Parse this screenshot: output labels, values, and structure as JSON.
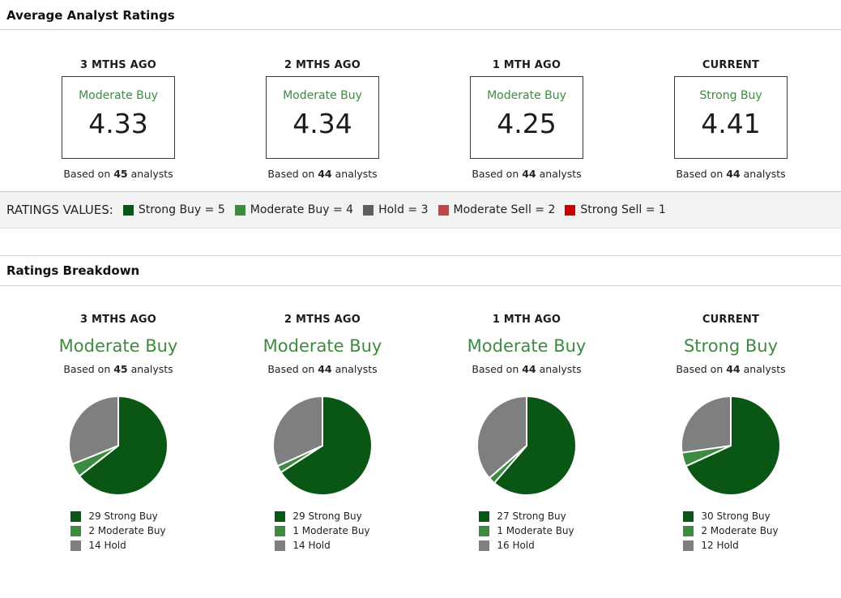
{
  "sections": {
    "average_title": "Average Analyst Ratings",
    "breakdown_title": "Ratings Breakdown"
  },
  "colors": {
    "strong_buy": "#0a5614",
    "moderate_buy": "#3d8b40",
    "hold_legend": "#5f5f5f",
    "hold_pie": "#7f7f7f",
    "moderate_sell": "#c54545",
    "strong_sell": "#cc0000",
    "rating_text_green": "#3d8b40",
    "bar_background": "#f2f2f2"
  },
  "average_ratings": {
    "columns": [
      {
        "period": "3 MTHS AGO",
        "rating": "Moderate Buy",
        "value": "4.33",
        "based_prefix": "Based on",
        "analyst_count": "45",
        "based_suffix": "analysts"
      },
      {
        "period": "2 MTHS AGO",
        "rating": "Moderate Buy",
        "value": "4.34",
        "based_prefix": "Based on",
        "analyst_count": "44",
        "based_suffix": "analysts"
      },
      {
        "period": "1 MTH AGO",
        "rating": "Moderate Buy",
        "value": "4.25",
        "based_prefix": "Based on",
        "analyst_count": "44",
        "based_suffix": "analysts"
      },
      {
        "period": "CURRENT",
        "rating": "Strong Buy",
        "value": "4.41",
        "based_prefix": "Based on",
        "analyst_count": "44",
        "based_suffix": "analysts"
      }
    ]
  },
  "ratings_values": {
    "label": "RATINGS VALUES:",
    "items": [
      {
        "label": "Strong Buy = 5"
      },
      {
        "label": "Moderate Buy = 4"
      },
      {
        "label": "Hold = 3"
      },
      {
        "label": "Moderate Sell = 2"
      },
      {
        "label": "Strong Sell = 1"
      }
    ]
  },
  "breakdown": {
    "columns": [
      {
        "period": "3 MTHS AGO",
        "rating": "Moderate Buy",
        "based_prefix": "Based on",
        "analyst_count": "45",
        "based_suffix": "analysts",
        "legend": [
          "29 Strong Buy",
          "2 Moderate Buy",
          "14 Hold"
        ]
      },
      {
        "period": "2 MTHS AGO",
        "rating": "Moderate Buy",
        "based_prefix": "Based on",
        "analyst_count": "44",
        "based_suffix": "analysts",
        "legend": [
          "29 Strong Buy",
          "1 Moderate Buy",
          "14 Hold"
        ]
      },
      {
        "period": "1 MTH AGO",
        "rating": "Moderate Buy",
        "based_prefix": "Based on",
        "analyst_count": "44",
        "based_suffix": "analysts",
        "legend": [
          "27 Strong Buy",
          "1 Moderate Buy",
          "16 Hold"
        ]
      },
      {
        "period": "CURRENT",
        "rating": "Strong Buy",
        "based_prefix": "Based on",
        "analyst_count": "44",
        "based_suffix": "analysts",
        "legend": [
          "30 Strong Buy",
          "2 Moderate Buy",
          "12 Hold"
        ]
      }
    ]
  },
  "chart_data": [
    {
      "type": "pie",
      "title": "3 MTHS AGO",
      "subtitle": "Moderate Buy",
      "total": 45,
      "labels": [
        "Strong Buy",
        "Moderate Buy",
        "Hold"
      ],
      "values": [
        29,
        2,
        14
      ],
      "colors": [
        "#0a5614",
        "#3d8b40",
        "#7f7f7f"
      ],
      "start_angle": 0,
      "direction": "clockwise",
      "legend_position": "bottom"
    },
    {
      "type": "pie",
      "title": "2 MTHS AGO",
      "subtitle": "Moderate Buy",
      "total": 44,
      "labels": [
        "Strong Buy",
        "Moderate Buy",
        "Hold"
      ],
      "values": [
        29,
        1,
        14
      ],
      "colors": [
        "#0a5614",
        "#3d8b40",
        "#7f7f7f"
      ],
      "start_angle": 0,
      "direction": "clockwise",
      "legend_position": "bottom"
    },
    {
      "type": "pie",
      "title": "1 MTH AGO",
      "subtitle": "Moderate Buy",
      "total": 44,
      "labels": [
        "Strong Buy",
        "Moderate Buy",
        "Hold"
      ],
      "values": [
        27,
        1,
        16
      ],
      "colors": [
        "#0a5614",
        "#3d8b40",
        "#7f7f7f"
      ],
      "start_angle": 0,
      "direction": "clockwise",
      "legend_position": "bottom"
    },
    {
      "type": "pie",
      "title": "CURRENT",
      "subtitle": "Strong Buy",
      "total": 44,
      "labels": [
        "Strong Buy",
        "Moderate Buy",
        "Hold"
      ],
      "values": [
        30,
        2,
        12
      ],
      "colors": [
        "#0a5614",
        "#3d8b40",
        "#7f7f7f"
      ],
      "start_angle": 0,
      "direction": "clockwise",
      "legend_position": "bottom"
    }
  ]
}
